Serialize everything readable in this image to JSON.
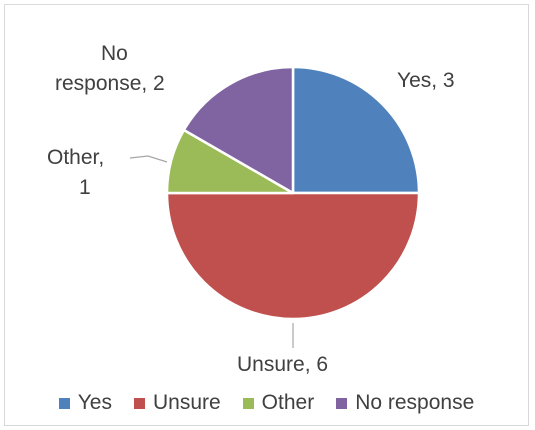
{
  "chart_data": {
    "type": "pie",
    "title": "",
    "categories": [
      "Yes",
      "Unsure",
      "Other",
      "No response"
    ],
    "values": [
      3,
      6,
      1,
      2
    ],
    "colors": [
      "#4f81bd",
      "#c0504d",
      "#9bbb59",
      "#8064a2"
    ],
    "data_labels": [
      {
        "category": "Yes",
        "text": "Yes, 3"
      },
      {
        "category": "Unsure",
        "text": "Unsure, 6"
      },
      {
        "category": "Other",
        "line1": "Other,",
        "line2": "1"
      },
      {
        "category": "No response",
        "line1": "No",
        "line2": "response, 2"
      }
    ],
    "legend": {
      "position": "bottom",
      "items": [
        "Yes",
        "Unsure",
        "Other",
        "No response"
      ]
    }
  }
}
